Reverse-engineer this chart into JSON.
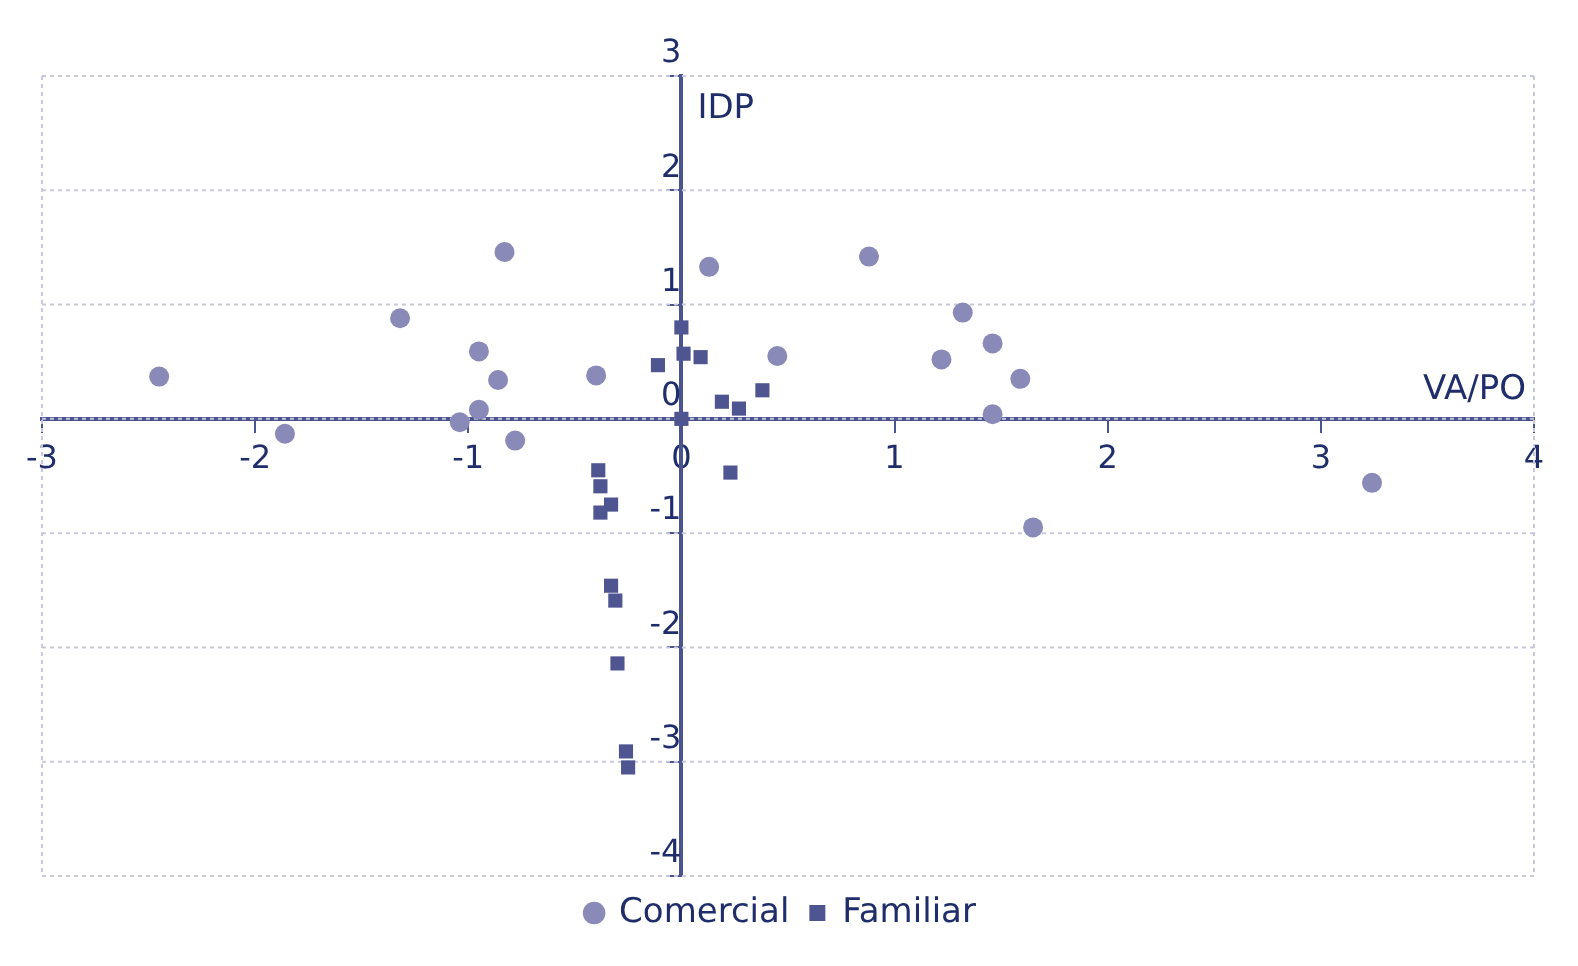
{
  "chart_data": {
    "type": "scatter",
    "xlabel": "VA/PO",
    "ylabel": "IDP",
    "xlim": [
      -3,
      4
    ],
    "xticks": [
      -3,
      -2,
      -1,
      0,
      1,
      2,
      3,
      4
    ],
    "ylim": [
      -4,
      3
    ],
    "yticks": [
      -4,
      -3,
      -2,
      -1,
      0,
      1,
      2,
      3
    ],
    "grid": "y",
    "legend": "bottom",
    "series": [
      {
        "name": "Comercial",
        "color": "#8a8ab8",
        "marker": "circle",
        "x": [
          -2.45,
          -1.86,
          -1.32,
          -0.83,
          -0.95,
          -0.86,
          -0.95,
          -1.04,
          -0.78,
          -0.4,
          0.13,
          0.45,
          0.88,
          1.32,
          1.22,
          1.46,
          1.59,
          1.46,
          3.24,
          1.65
        ],
        "values": [
          0.37,
          -0.13,
          0.88,
          1.46,
          0.59,
          0.34,
          0.08,
          -0.03,
          -0.19,
          0.38,
          1.33,
          0.55,
          1.42,
          0.93,
          0.52,
          0.66,
          0.35,
          0.04,
          -0.56,
          -0.95
        ]
      },
      {
        "name": "Familiar",
        "color": "#4f5590",
        "marker": "square",
        "x": [
          0,
          0.01,
          0.09,
          -0.11,
          0,
          0.19,
          0.27,
          0.38,
          0.23,
          -0.39,
          -0.38,
          -0.33,
          -0.38,
          -0.33,
          -0.31,
          -0.3,
          -0.26,
          -0.25
        ],
        "values": [
          0.8,
          0.57,
          0.54,
          0.47,
          0,
          0.15,
          0.09,
          0.25,
          -0.47,
          -0.45,
          -0.59,
          -0.75,
          -0.82,
          -1.46,
          -1.59,
          -2.14,
          -2.91,
          -3.05
        ]
      }
    ]
  }
}
